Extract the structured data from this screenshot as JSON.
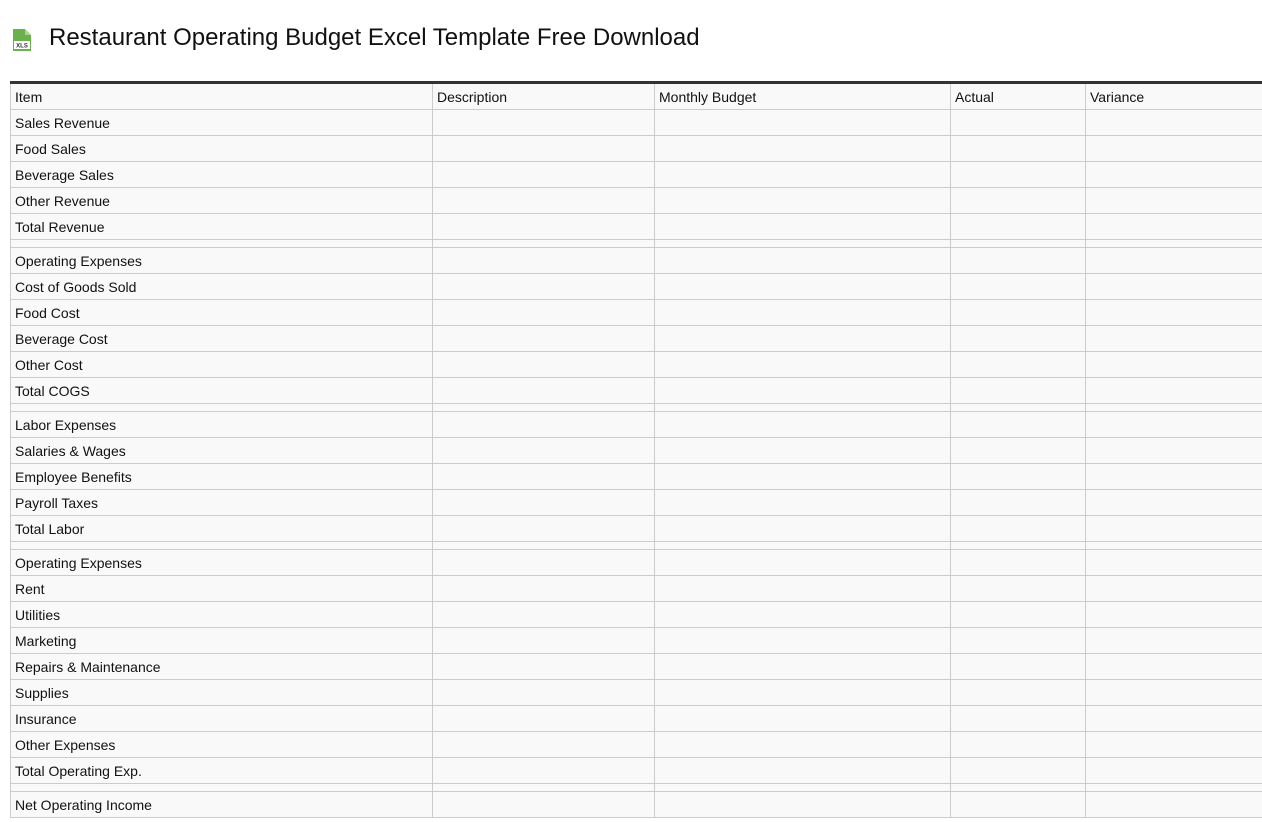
{
  "title": "Restaurant Operating Budget Excel Template Free Download",
  "icon": "xls-file-icon",
  "icon_label": "XLS",
  "columns": [
    "Item",
    "Description",
    "Monthly Budget",
    "Actual",
    "Variance"
  ],
  "rows": [
    "Sales Revenue",
    "Food Sales",
    "Beverage Sales",
    "Other Revenue",
    "Total Revenue",
    "",
    "Operating Expenses",
    "Cost of Goods Sold",
    "Food Cost",
    "Beverage Cost",
    "Other Cost",
    "Total COGS",
    "",
    "Labor Expenses",
    "Salaries & Wages",
    "Employee Benefits",
    "Payroll Taxes",
    "Total Labor",
    "",
    "Operating Expenses",
    "Rent",
    "Utilities",
    "Marketing",
    "Repairs & Maintenance",
    "Supplies",
    "Insurance",
    "Other Expenses",
    "Total Operating Exp.",
    "",
    "Net Operating Income"
  ]
}
